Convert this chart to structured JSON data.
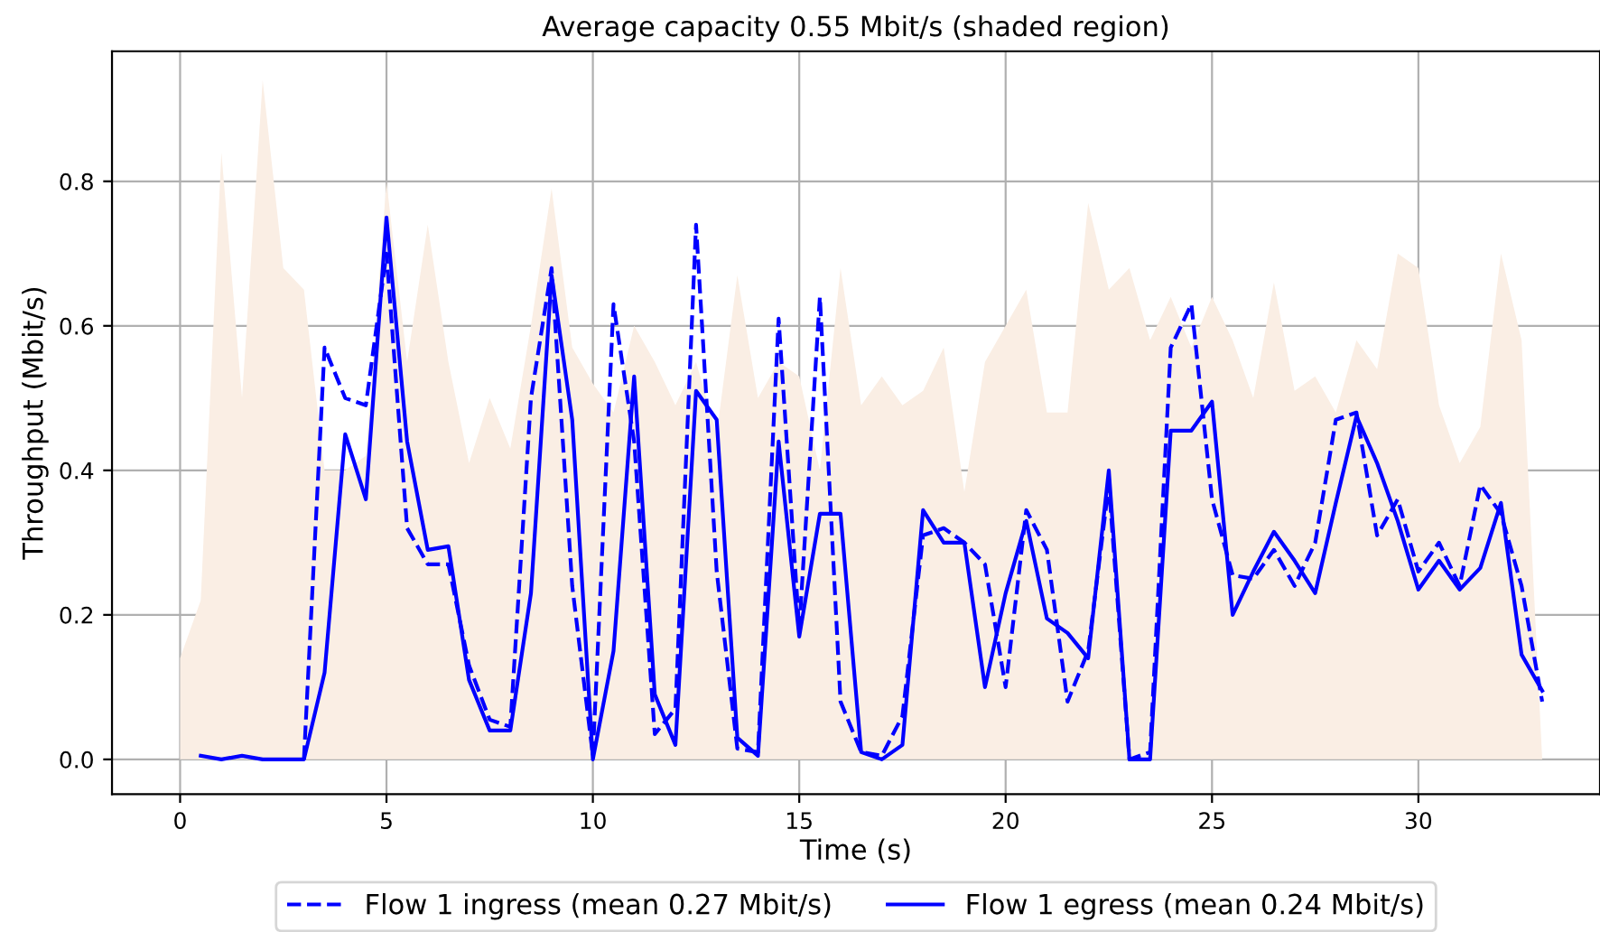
{
  "chart_data": {
    "type": "line",
    "title": "Average capacity 0.55 Mbit/s (shaded region)",
    "xlabel": "Time (s)",
    "ylabel": "Throughput (Mbit/s)",
    "xlim": [
      -1.65,
      34.4
    ],
    "ylim": [
      -0.048,
      0.98
    ],
    "xticks": [
      0,
      5,
      10,
      15,
      20,
      25,
      30
    ],
    "yticks": [
      {
        "value": 0,
        "label": "0.0"
      },
      {
        "value": 0.2,
        "label": "0.2"
      },
      {
        "value": 0.4,
        "label": "0.4"
      },
      {
        "value": 0.6,
        "label": "0.6"
      },
      {
        "value": 0.8,
        "label": "0.8"
      }
    ],
    "grid": true,
    "legend": "bottom",
    "series": [
      {
        "type": "area",
        "color": "#faeee4",
        "x": [
          0,
          0.5,
          1,
          1.5,
          2,
          2.5,
          3,
          3.5,
          4,
          4.5,
          5,
          5.5,
          6,
          6.5,
          7,
          7.5,
          8,
          8.5,
          9,
          9.5,
          10,
          10.5,
          11,
          11.5,
          12,
          12.5,
          13,
          13.5,
          14,
          14.5,
          15,
          15.5,
          16,
          16.5,
          17,
          17.5,
          18,
          18.5,
          19,
          19.5,
          20,
          20.5,
          21,
          21.5,
          22,
          22.5,
          23,
          23.5,
          24,
          24.5,
          25,
          25.5,
          26,
          26.5,
          27,
          27.5,
          28,
          28.5,
          29,
          29.5,
          30,
          30.5,
          31,
          31.5,
          32,
          32.5,
          33
        ],
        "values": [
          0.14,
          0.22,
          0.84,
          0.5,
          0.94,
          0.68,
          0.65,
          0.4,
          0.4,
          0.42,
          0.8,
          0.55,
          0.74,
          0.55,
          0.41,
          0.5,
          0.43,
          0.6,
          0.79,
          0.57,
          0.52,
          0.48,
          0.6,
          0.55,
          0.49,
          0.55,
          0.45,
          0.67,
          0.5,
          0.55,
          0.53,
          0.4,
          0.68,
          0.49,
          0.53,
          0.49,
          0.51,
          0.57,
          0.37,
          0.55,
          0.6,
          0.65,
          0.48,
          0.48,
          0.77,
          0.65,
          0.68,
          0.58,
          0.64,
          0.57,
          0.64,
          0.58,
          0.5,
          0.66,
          0.51,
          0.53,
          0.48,
          0.58,
          0.54,
          0.7,
          0.68,
          0.49,
          0.41,
          0.46,
          0.7,
          0.58,
          0.0
        ]
      },
      {
        "name": "Flow 1 ingress (mean 0.27 Mbit/s)",
        "color": "#0000ff",
        "line_style": "dashed",
        "x": [
          3,
          3.5,
          4,
          4.5,
          5,
          5.5,
          6,
          6.5,
          7,
          7.5,
          8,
          8.5,
          9,
          9.5,
          10,
          10.5,
          11,
          11.5,
          12,
          12.5,
          13,
          13.5,
          14,
          14.5,
          15,
          15.5,
          16,
          16.5,
          17,
          17.5,
          18,
          18.5,
          19,
          19.5,
          20,
          20.5,
          21,
          21.5,
          22,
          22.5,
          23,
          23.5,
          24,
          24.5,
          25,
          25.5,
          26,
          26.5,
          27,
          27.5,
          28,
          28.5,
          29,
          29.5,
          30,
          30.5,
          31,
          31.5,
          32,
          32.5,
          33
        ],
        "values": [
          0.0,
          0.57,
          0.5,
          0.49,
          0.7,
          0.32,
          0.27,
          0.27,
          0.13,
          0.055,
          0.045,
          0.5,
          0.68,
          0.24,
          0.005,
          0.63,
          0.44,
          0.035,
          0.07,
          0.74,
          0.26,
          0.015,
          0.01,
          0.61,
          0.18,
          0.64,
          0.08,
          0.01,
          0.005,
          0.06,
          0.31,
          0.32,
          0.3,
          0.27,
          0.1,
          0.345,
          0.29,
          0.08,
          0.15,
          0.38,
          0.0,
          0.01,
          0.57,
          0.63,
          0.36,
          0.255,
          0.25,
          0.29,
          0.24,
          0.3,
          0.47,
          0.48,
          0.31,
          0.36,
          0.26,
          0.3,
          0.24,
          0.38,
          0.34,
          0.24,
          0.08
        ]
      },
      {
        "name": "Flow 1 egress (mean 0.24 Mbit/s)",
        "color": "#0000ff",
        "line_style": "solid",
        "x": [
          0.5,
          1,
          1.5,
          2,
          2.5,
          3,
          3.5,
          4,
          4.5,
          5,
          5.5,
          6,
          6.5,
          7,
          7.5,
          8,
          8.5,
          9,
          9.5,
          10,
          10.5,
          11,
          11.5,
          12,
          12.5,
          13,
          13.5,
          14,
          14.5,
          15,
          15.5,
          16,
          16.5,
          17,
          17.5,
          18,
          18.5,
          19,
          19.5,
          20,
          20.5,
          21,
          21.5,
          22,
          22.5,
          23,
          23.5,
          24,
          24.5,
          25,
          25.5,
          26,
          26.5,
          27,
          27.5,
          28,
          28.5,
          29,
          29.5,
          30,
          30.5,
          31,
          31.5,
          32,
          32.5,
          33
        ],
        "values": [
          0.005,
          0.0,
          0.005,
          0.0,
          0.0,
          0.0,
          0.12,
          0.45,
          0.36,
          0.75,
          0.44,
          0.29,
          0.295,
          0.11,
          0.04,
          0.04,
          0.23,
          0.67,
          0.47,
          0.0,
          0.15,
          0.53,
          0.09,
          0.02,
          0.51,
          0.47,
          0.03,
          0.005,
          0.44,
          0.17,
          0.34,
          0.34,
          0.01,
          0.0,
          0.02,
          0.345,
          0.3,
          0.3,
          0.1,
          0.23,
          0.33,
          0.195,
          0.175,
          0.14,
          0.4,
          0.0,
          0.0,
          0.455,
          0.455,
          0.495,
          0.2,
          0.26,
          0.315,
          0.275,
          0.23,
          0.355,
          0.475,
          0.41,
          0.33,
          0.235,
          0.275,
          0.235,
          0.265,
          0.355,
          0.145,
          0.095
        ]
      }
    ]
  }
}
